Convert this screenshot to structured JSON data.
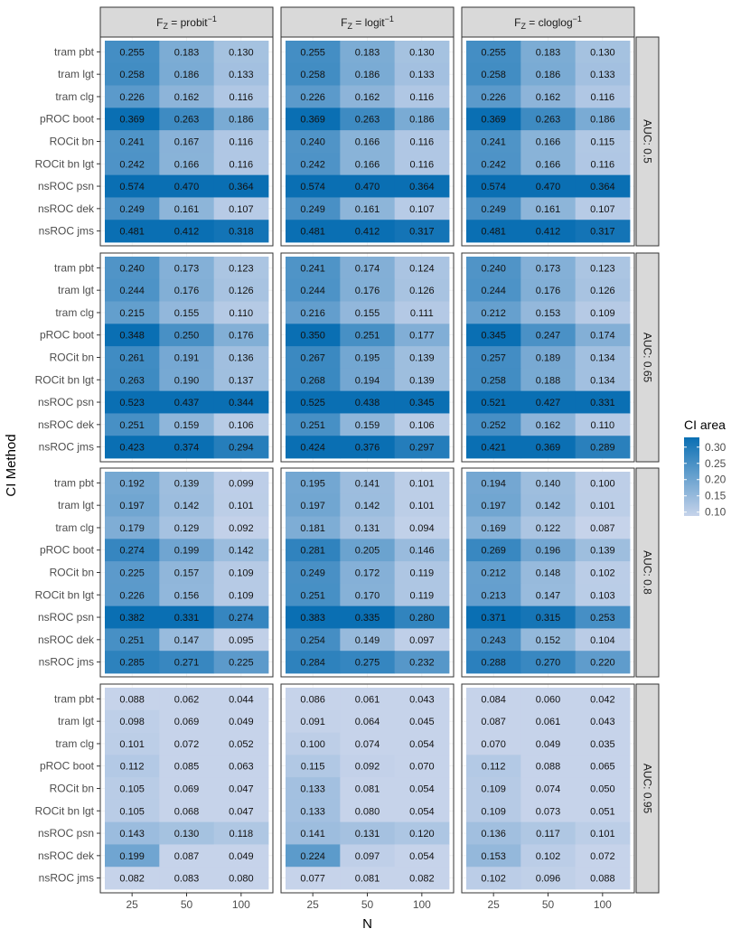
{
  "chart_data": {
    "type": "heatmap",
    "facet_columns": [
      {
        "prefix": "F",
        "sub": "Z",
        "mid": " = ",
        "name": "probit",
        "sup": "−1"
      },
      {
        "prefix": "F",
        "sub": "Z",
        "mid": " = ",
        "name": "logit",
        "sup": "−1"
      },
      {
        "prefix": "F",
        "sub": "Z",
        "mid": " = ",
        "name": "cloglog",
        "sup": "−1"
      }
    ],
    "facet_rows": [
      "AUC: 0.5",
      "AUC: 0.65",
      "AUC: 0.8",
      "AUC: 0.95"
    ],
    "x_categories": [
      "25",
      "50",
      "100"
    ],
    "y_categories": [
      "tram pbt",
      "tram lgt",
      "tram clg",
      "pROC boot",
      "ROCit bn",
      "ROCit bn lgt",
      "nsROC psn",
      "nsROC dek",
      "nsROC jms"
    ],
    "xlabel": "N",
    "ylabel": "CI Method",
    "legend": {
      "title": "CI area",
      "position": "right",
      "breaks": [
        "0.30",
        "0.25",
        "0.20",
        "0.15",
        "0.10"
      ],
      "break_values": [
        0.3,
        0.25,
        0.2,
        0.15,
        0.1
      ],
      "range": [
        0.088,
        0.33
      ],
      "color_low": "#c6d3ea",
      "color_high": "#0a6fb3"
    },
    "values": [
      [
        [
          [
            "0.255",
            "0.183",
            "0.130"
          ],
          [
            "0.258",
            "0.186",
            "0.133"
          ],
          [
            "0.226",
            "0.162",
            "0.116"
          ],
          [
            "0.369",
            "0.263",
            "0.186"
          ],
          [
            "0.241",
            "0.167",
            "0.116"
          ],
          [
            "0.242",
            "0.166",
            "0.116"
          ],
          [
            "0.574",
            "0.470",
            "0.364"
          ],
          [
            "0.249",
            "0.161",
            "0.107"
          ],
          [
            "0.481",
            "0.412",
            "0.318"
          ]
        ],
        [
          [
            "0.255",
            "0.183",
            "0.130"
          ],
          [
            "0.258",
            "0.186",
            "0.133"
          ],
          [
            "0.226",
            "0.162",
            "0.116"
          ],
          [
            "0.369",
            "0.263",
            "0.186"
          ],
          [
            "0.240",
            "0.166",
            "0.116"
          ],
          [
            "0.242",
            "0.166",
            "0.116"
          ],
          [
            "0.574",
            "0.470",
            "0.364"
          ],
          [
            "0.249",
            "0.161",
            "0.107"
          ],
          [
            "0.481",
            "0.412",
            "0.317"
          ]
        ],
        [
          [
            "0.255",
            "0.183",
            "0.130"
          ],
          [
            "0.258",
            "0.186",
            "0.133"
          ],
          [
            "0.226",
            "0.162",
            "0.116"
          ],
          [
            "0.369",
            "0.263",
            "0.186"
          ],
          [
            "0.241",
            "0.166",
            "0.115"
          ],
          [
            "0.242",
            "0.166",
            "0.116"
          ],
          [
            "0.574",
            "0.470",
            "0.364"
          ],
          [
            "0.249",
            "0.161",
            "0.107"
          ],
          [
            "0.481",
            "0.412",
            "0.317"
          ]
        ]
      ],
      [
        [
          [
            "0.240",
            "0.173",
            "0.123"
          ],
          [
            "0.244",
            "0.176",
            "0.126"
          ],
          [
            "0.215",
            "0.155",
            "0.110"
          ],
          [
            "0.348",
            "0.250",
            "0.176"
          ],
          [
            "0.261",
            "0.191",
            "0.136"
          ],
          [
            "0.263",
            "0.190",
            "0.137"
          ],
          [
            "0.523",
            "0.437",
            "0.344"
          ],
          [
            "0.251",
            "0.159",
            "0.106"
          ],
          [
            "0.423",
            "0.374",
            "0.294"
          ]
        ],
        [
          [
            "0.241",
            "0.174",
            "0.124"
          ],
          [
            "0.244",
            "0.176",
            "0.126"
          ],
          [
            "0.216",
            "0.155",
            "0.111"
          ],
          [
            "0.350",
            "0.251",
            "0.177"
          ],
          [
            "0.267",
            "0.195",
            "0.139"
          ],
          [
            "0.268",
            "0.194",
            "0.139"
          ],
          [
            "0.525",
            "0.438",
            "0.345"
          ],
          [
            "0.251",
            "0.159",
            "0.106"
          ],
          [
            "0.424",
            "0.376",
            "0.297"
          ]
        ],
        [
          [
            "0.240",
            "0.173",
            "0.123"
          ],
          [
            "0.244",
            "0.176",
            "0.126"
          ],
          [
            "0.212",
            "0.153",
            "0.109"
          ],
          [
            "0.345",
            "0.247",
            "0.174"
          ],
          [
            "0.257",
            "0.189",
            "0.134"
          ],
          [
            "0.258",
            "0.188",
            "0.134"
          ],
          [
            "0.521",
            "0.427",
            "0.331"
          ],
          [
            "0.252",
            "0.162",
            "0.110"
          ],
          [
            "0.421",
            "0.369",
            "0.289"
          ]
        ]
      ],
      [
        [
          [
            "0.192",
            "0.139",
            "0.099"
          ],
          [
            "0.197",
            "0.142",
            "0.101"
          ],
          [
            "0.179",
            "0.129",
            "0.092"
          ],
          [
            "0.274",
            "0.199",
            "0.142"
          ],
          [
            "0.225",
            "0.157",
            "0.109"
          ],
          [
            "0.226",
            "0.156",
            "0.109"
          ],
          [
            "0.382",
            "0.331",
            "0.274"
          ],
          [
            "0.251",
            "0.147",
            "0.095"
          ],
          [
            "0.285",
            "0.271",
            "0.225"
          ]
        ],
        [
          [
            "0.195",
            "0.141",
            "0.101"
          ],
          [
            "0.197",
            "0.142",
            "0.101"
          ],
          [
            "0.181",
            "0.131",
            "0.094"
          ],
          [
            "0.281",
            "0.205",
            "0.146"
          ],
          [
            "0.249",
            "0.172",
            "0.119"
          ],
          [
            "0.251",
            "0.170",
            "0.119"
          ],
          [
            "0.383",
            "0.335",
            "0.280"
          ],
          [
            "0.254",
            "0.149",
            "0.097"
          ],
          [
            "0.284",
            "0.275",
            "0.232"
          ]
        ],
        [
          [
            "0.194",
            "0.140",
            "0.100"
          ],
          [
            "0.197",
            "0.142",
            "0.101"
          ],
          [
            "0.169",
            "0.122",
            "0.087"
          ],
          [
            "0.269",
            "0.196",
            "0.139"
          ],
          [
            "0.212",
            "0.148",
            "0.102"
          ],
          [
            "0.213",
            "0.147",
            "0.103"
          ],
          [
            "0.371",
            "0.315",
            "0.253"
          ],
          [
            "0.243",
            "0.152",
            "0.104"
          ],
          [
            "0.288",
            "0.270",
            "0.220"
          ]
        ]
      ],
      [
        [
          [
            "0.088",
            "0.062",
            "0.044"
          ],
          [
            "0.098",
            "0.069",
            "0.049"
          ],
          [
            "0.101",
            "0.072",
            "0.052"
          ],
          [
            "0.112",
            "0.085",
            "0.063"
          ],
          [
            "0.105",
            "0.069",
            "0.047"
          ],
          [
            "0.105",
            "0.068",
            "0.047"
          ],
          [
            "0.143",
            "0.130",
            "0.118"
          ],
          [
            "0.199",
            "0.087",
            "0.049"
          ],
          [
            "0.082",
            "0.083",
            "0.080"
          ]
        ],
        [
          [
            "0.086",
            "0.061",
            "0.043"
          ],
          [
            "0.091",
            "0.064",
            "0.045"
          ],
          [
            "0.100",
            "0.074",
            "0.054"
          ],
          [
            "0.115",
            "0.092",
            "0.070"
          ],
          [
            "0.133",
            "0.081",
            "0.054"
          ],
          [
            "0.133",
            "0.080",
            "0.054"
          ],
          [
            "0.141",
            "0.131",
            "0.120"
          ],
          [
            "0.224",
            "0.097",
            "0.054"
          ],
          [
            "0.077",
            "0.081",
            "0.082"
          ]
        ],
        [
          [
            "0.084",
            "0.060",
            "0.042"
          ],
          [
            "0.087",
            "0.061",
            "0.043"
          ],
          [
            "0.070",
            "0.049",
            "0.035"
          ],
          [
            "0.112",
            "0.088",
            "0.065"
          ],
          [
            "0.109",
            "0.074",
            "0.050"
          ],
          [
            "0.109",
            "0.073",
            "0.051"
          ],
          [
            "0.136",
            "0.117",
            "0.101"
          ],
          [
            "0.153",
            "0.102",
            "0.072"
          ],
          [
            "0.102",
            "0.096",
            "0.088"
          ]
        ]
      ]
    ]
  }
}
